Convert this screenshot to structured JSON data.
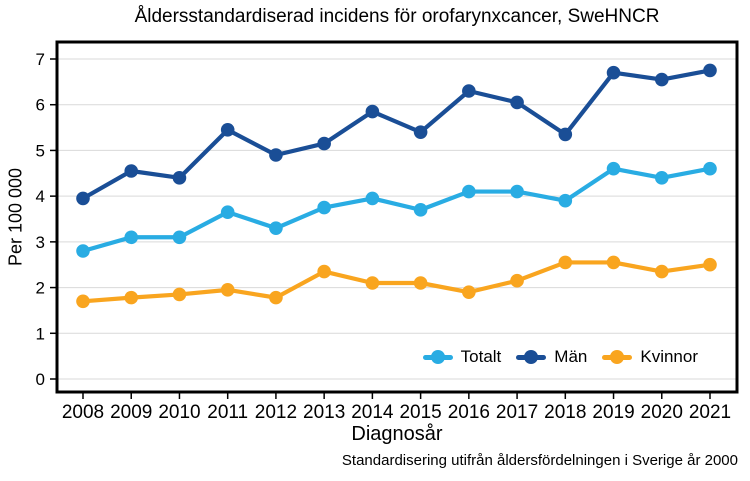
{
  "chart_data": {
    "type": "line",
    "title": "Åldersstandardiserad incidens för orofarynxcancer, SweHNCR",
    "xlabel": "Diagnosår",
    "ylabel": "Per 100 000",
    "footnote": "Standardisering utifrån åldersfördelningen i Sverige år 2000",
    "x": [
      2008,
      2009,
      2010,
      2011,
      2012,
      2013,
      2014,
      2015,
      2016,
      2017,
      2018,
      2019,
      2020,
      2021
    ],
    "ylim": [
      0,
      7
    ],
    "yticks": [
      0,
      1,
      2,
      3,
      4,
      5,
      6,
      7
    ],
    "grid": "horizontal",
    "legend_position": "inside-bottom-right",
    "colors": {
      "grid": "#d9d9d9",
      "frame": "#000000",
      "text": "#000000"
    },
    "series": [
      {
        "id": "totalt",
        "name": "Totalt",
        "color": "#29ACE3",
        "values": [
          2.8,
          3.1,
          3.1,
          3.65,
          3.3,
          3.75,
          3.95,
          3.7,
          4.1,
          4.1,
          3.9,
          4.6,
          4.4,
          4.6
        ]
      },
      {
        "id": "man",
        "name": "Män",
        "color": "#1A4E96",
        "values": [
          3.95,
          4.55,
          4.4,
          5.45,
          4.9,
          5.15,
          5.85,
          5.4,
          6.3,
          6.05,
          5.35,
          6.7,
          6.55,
          6.75
        ]
      },
      {
        "id": "kvinnor",
        "name": "Kvinnor",
        "color": "#F9A51F",
        "values": [
          1.7,
          1.78,
          1.85,
          1.95,
          1.78,
          2.35,
          2.1,
          2.1,
          1.9,
          2.15,
          2.55,
          2.55,
          2.35,
          2.5
        ]
      }
    ]
  }
}
